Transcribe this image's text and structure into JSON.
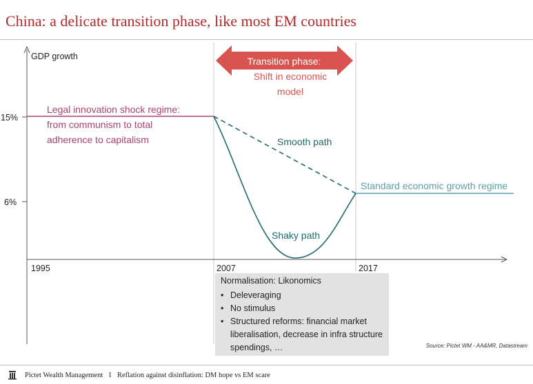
{
  "header": {
    "title": "China: a delicate transition phase, like most EM countries"
  },
  "chart": {
    "y_axis_label": "GDP growth",
    "y_ticks": [
      "15%",
      "6%"
    ],
    "x_ticks": [
      "1995",
      "2007",
      "2017"
    ],
    "transition_arrow": {
      "label": "Transition phase:",
      "color": "#d9534f"
    },
    "transition_subtitle_line1": "Shift in economic",
    "transition_subtitle_line2": "model",
    "legal_regime_line1": "Legal innovation shock regime:",
    "legal_regime_line2": "from communism to total",
    "legal_regime_line3": "adherence to capitalism",
    "smooth_path_label": "Smooth path",
    "shaky_path_label": "Shaky path",
    "standard_regime_label": "Standard economic growth regime",
    "colors": {
      "regime_line": "#a8426f",
      "path_line": "#1f6b6b",
      "standard_line": "#5aa0a8",
      "transition_text": "#d9534f"
    }
  },
  "note_box": {
    "title": "Normalisation: Likonomics",
    "items": [
      "Deleveraging",
      "No stimulus",
      "Structured reforms: financial market liberalisation, decrease in infra structure spendings, …"
    ]
  },
  "source": "Source: Pictet WM - AA&MR, Datastream",
  "footer": {
    "brand": "Pictet Wealth Management",
    "separator": "I",
    "subtitle": "Reflation against disinflation: DM hope vs EM scare"
  }
}
